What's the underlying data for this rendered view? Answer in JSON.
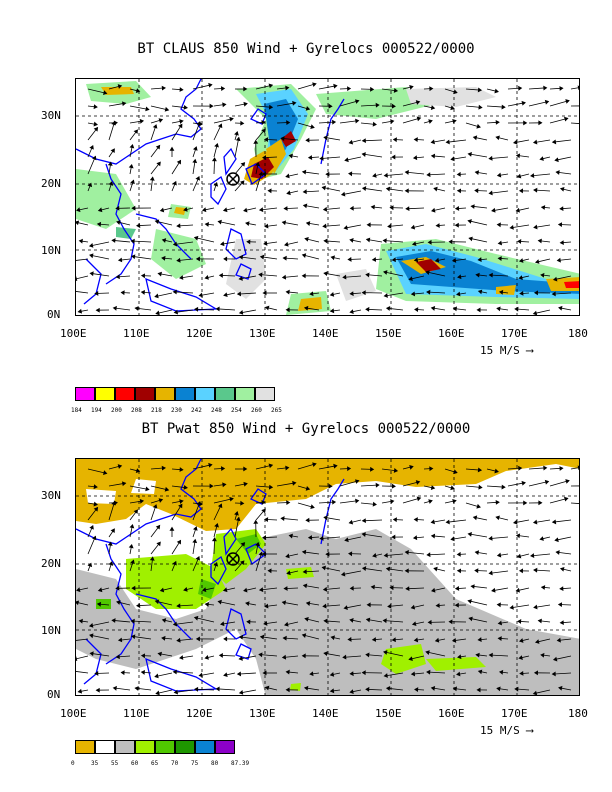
{
  "panels": [
    {
      "title": "BT CLAUS 850 Wind + Gyrelocs 000522/0000",
      "lat_labels": [
        "30N",
        "20N",
        "10N",
        "0N"
      ],
      "lon_labels": [
        "100E",
        "110E",
        "120E",
        "130E",
        "140E",
        "150E",
        "160E",
        "170E",
        "180"
      ],
      "vector_key": "15 M/S",
      "colorbar_colors": [
        "#ff00ff",
        "#ffff00",
        "#ff0000",
        "#a00000",
        "#e6b400",
        "#0a82d2",
        "#5ad2ff",
        "#5ac88c",
        "#a0f0a0",
        "#e1e1e1"
      ],
      "colorbar_labels": [
        "184",
        "194",
        "200",
        "208",
        "218",
        "230",
        "242",
        "248",
        "254",
        "260",
        "265"
      ]
    },
    {
      "title": "BT Pwat 850 Wind + Gyrelocs 000522/0000",
      "lat_labels": [
        "30N",
        "20N",
        "10N",
        "0N"
      ],
      "lon_labels": [
        "100E",
        "110E",
        "120E",
        "130E",
        "140E",
        "150E",
        "160E",
        "170E",
        "180"
      ],
      "vector_key": "15 M/S",
      "colorbar_colors": [
        "#e6b400",
        "#ffffff",
        "#bebebe",
        "#a0f000",
        "#50c800",
        "#1e9600",
        "#0a82d2",
        "#8c00c8"
      ],
      "colorbar_labels": [
        "0",
        "35",
        "55",
        "60",
        "65",
        "70",
        "75",
        "80",
        "87.39"
      ]
    }
  ],
  "colors": {
    "coast": "#0000ff",
    "grid": "#000000"
  },
  "gyre_marker": "gyre-location-symbol"
}
